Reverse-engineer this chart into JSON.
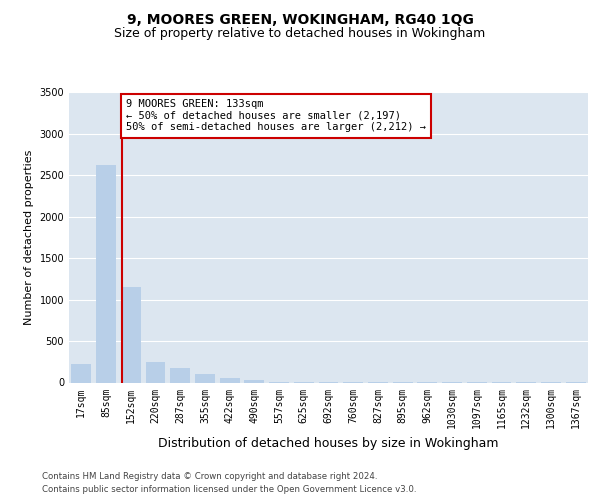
{
  "title": "9, MOORES GREEN, WOKINGHAM, RG40 1QG",
  "subtitle": "Size of property relative to detached houses in Wokingham",
  "xlabel": "Distribution of detached houses by size in Wokingham",
  "ylabel": "Number of detached properties",
  "categories": [
    "17sqm",
    "85sqm",
    "152sqm",
    "220sqm",
    "287sqm",
    "355sqm",
    "422sqm",
    "490sqm",
    "557sqm",
    "625sqm",
    "692sqm",
    "760sqm",
    "827sqm",
    "895sqm",
    "962sqm",
    "1030sqm",
    "1097sqm",
    "1165sqm",
    "1232sqm",
    "1300sqm",
    "1367sqm"
  ],
  "values": [
    220,
    2620,
    1150,
    250,
    180,
    100,
    60,
    30,
    10,
    6,
    4,
    3,
    2,
    2,
    2,
    1,
    1,
    1,
    1,
    1,
    1
  ],
  "bar_color": "#b8cfe8",
  "vline_color": "#cc0000",
  "vline_pos": 1.65,
  "annotation_text": "9 MOORES GREEN: 133sqm\n← 50% of detached houses are smaller (2,197)\n50% of semi-detached houses are larger (2,212) →",
  "annotation_box_color": "#ffffff",
  "annotation_box_edge_color": "#cc0000",
  "ylim": [
    0,
    3500
  ],
  "yticks": [
    0,
    500,
    1000,
    1500,
    2000,
    2500,
    3000,
    3500
  ],
  "background_color": "#ffffff",
  "plot_bg_color": "#dce6f0",
  "grid_color": "#ffffff",
  "title_fontsize": 10,
  "subtitle_fontsize": 9,
  "xlabel_fontsize": 9,
  "ylabel_fontsize": 8,
  "tick_fontsize": 7,
  "footer_line1": "Contains HM Land Registry data © Crown copyright and database right 2024.",
  "footer_line2": "Contains public sector information licensed under the Open Government Licence v3.0."
}
